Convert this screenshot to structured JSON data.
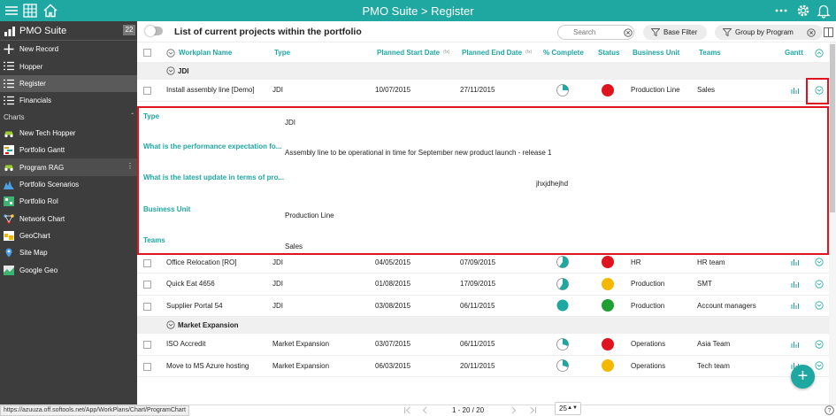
{
  "app": {
    "title": "PMO Suite > Register"
  },
  "sidebar": {
    "name": "PMO Suite",
    "badge": "22",
    "items": [
      {
        "label": "New Record",
        "icon": "plus-icon"
      },
      {
        "label": "Hopper",
        "icon": "list-icon"
      },
      {
        "label": "Register",
        "icon": "list-icon"
      },
      {
        "label": "Financials",
        "icon": "list-icon"
      }
    ],
    "section": "Charts",
    "charts": [
      {
        "label": "New Tech Hopper",
        "icon": "car-icon"
      },
      {
        "label": "Portfolio Gantt",
        "icon": "gantt-icon"
      },
      {
        "label": "Program RAG",
        "icon": "car-icon"
      },
      {
        "label": "Portfolio Scenarios",
        "icon": "mountain-chart-icon"
      },
      {
        "label": "Portfolio RoI",
        "icon": "roi-chart-icon"
      },
      {
        "label": "Network Chart",
        "icon": "network-icon"
      },
      {
        "label": "GeoChart",
        "icon": "geochart-icon"
      },
      {
        "label": "Site Map",
        "icon": "site-map-icon"
      },
      {
        "label": "Google Geo",
        "icon": "google-geo-icon"
      }
    ]
  },
  "toolbar": {
    "title": "List of current projects within the portfolio",
    "search_placeholder": "Search",
    "base_filter": "Base Filter",
    "group_by": "Group by Program"
  },
  "columns": {
    "workplan": "Workplan Name",
    "type": "Type",
    "start": "Planned Start Date",
    "end": "Planned End Date",
    "fx": "(fx)",
    "complete": "% Complete",
    "status": "Status",
    "bu": "Business Unit",
    "teams": "Teams",
    "gantt": "Gantt"
  },
  "groups": [
    {
      "name": "JDI",
      "rows": [
        {
          "name": "Install assembly line [Demo]",
          "type": "JDI",
          "start": "10/07/2015",
          "end": "27/11/2015",
          "complete": 0.25,
          "status": "red",
          "bu": "Production Line",
          "teams": "Sales"
        },
        {
          "name": "Office Relocation [RO]",
          "type": "JDI",
          "start": "04/05/2015",
          "end": "07/09/2015",
          "complete": 0.6,
          "status": "red",
          "bu": "HR",
          "teams": "HR team"
        },
        {
          "name": "Quick Eat 4656",
          "type": "JDI",
          "start": "01/08/2015",
          "end": "17/09/2015",
          "complete": 0.6,
          "status": "amber",
          "bu": "Production",
          "teams": "SMT"
        },
        {
          "name": "Supplier Portal 54",
          "type": "JDI",
          "start": "03/08/2015",
          "end": "06/11/2015",
          "complete": 1.0,
          "status": "green",
          "bu": "Production",
          "teams": "Account managers"
        }
      ]
    },
    {
      "name": "Market Expansion",
      "rows": [
        {
          "name": "ISO Accredit",
          "type": "Market Expansion",
          "start": "03/07/2015",
          "end": "06/11/2015",
          "complete": 0.3,
          "status": "red",
          "bu": "Operations",
          "teams": "Asia Team"
        },
        {
          "name": "Move to MS Azure hosting",
          "type": "Market Expansion",
          "start": "06/03/2015",
          "end": "20/11/2015",
          "complete": 0.3,
          "status": "amber",
          "bu": "Operations",
          "teams": "Tech team"
        }
      ]
    }
  ],
  "detail": [
    {
      "label": "Type",
      "value": "JDI"
    },
    {
      "label": "What is the performance expectation fo...",
      "value": "Assembly line to be operational in time for September new product launch - release 1"
    },
    {
      "label": "What is the latest update in terms of pro...",
      "value": "jhxjdhejhd"
    },
    {
      "label": "Business Unit",
      "value": "Production Line"
    },
    {
      "label": "Teams",
      "value": "Sales"
    }
  ],
  "footer": {
    "url": "https://azuuza.off.softools.net/App/WorkPlans/Chart/ProgramChart",
    "pager": "1 - 20 / 20",
    "page_size": "25"
  },
  "colors": {
    "teal": "#1fa7a2",
    "red": "#e0141e",
    "amber": "#f5b800",
    "green": "#1e9e33"
  }
}
